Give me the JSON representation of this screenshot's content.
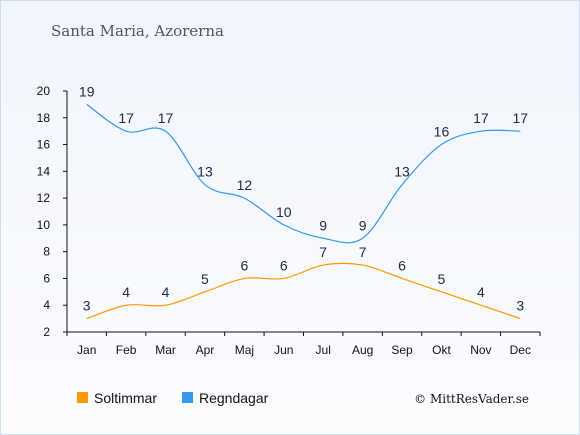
{
  "chart_data": {
    "type": "line",
    "title": "Santa Maria, Azorerna",
    "categories": [
      "Jan",
      "Feb",
      "Mar",
      "Apr",
      "Maj",
      "Jun",
      "Jul",
      "Aug",
      "Sep",
      "Okt",
      "Nov",
      "Dec"
    ],
    "ylim": [
      2,
      20
    ],
    "yticks": [
      2,
      4,
      6,
      8,
      10,
      12,
      14,
      16,
      18,
      20
    ],
    "grid": false,
    "legend_position": "bottom-left",
    "series": [
      {
        "name": "Soltimmar",
        "color": "#ff9900",
        "values": [
          3,
          4,
          4,
          5,
          6,
          6,
          7,
          7,
          6,
          5,
          4,
          3
        ]
      },
      {
        "name": "Regndagar",
        "color": "#3399ee",
        "values": [
          19,
          17,
          17,
          13,
          12,
          10,
          9,
          9,
          13,
          16,
          17,
          17
        ]
      }
    ],
    "credit": "© MittResVader.se"
  }
}
